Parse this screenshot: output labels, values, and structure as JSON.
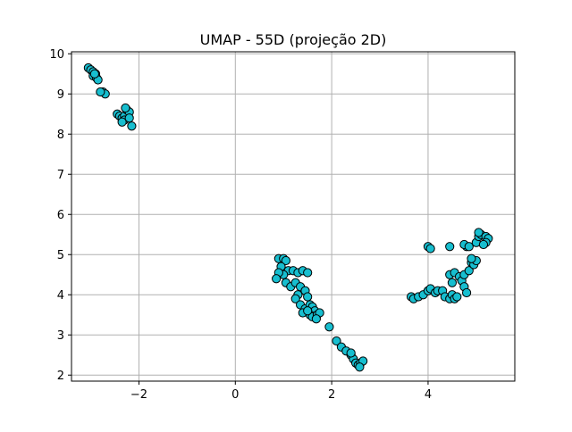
{
  "chart_data": {
    "type": "scatter",
    "title": "UMAP - 55D (projeção 2D)",
    "xlabel": "",
    "ylabel": "",
    "xlim": [
      -3.4,
      5.8
    ],
    "ylim": [
      1.85,
      10.05
    ],
    "xticks": [
      -2,
      0,
      2,
      4
    ],
    "xtick_labels": [
      "−2",
      "0",
      "2",
      "4"
    ],
    "yticks": [
      2,
      3,
      4,
      5,
      6,
      7,
      8,
      9,
      10
    ],
    "ytick_labels": [
      "2",
      "3",
      "4",
      "5",
      "6",
      "7",
      "8",
      "9",
      "10"
    ],
    "grid": true,
    "marker_fill": "#17becf",
    "marker_edge": "#000000",
    "points": [
      [
        -3.05,
        9.65
      ],
      [
        -3.0,
        9.6
      ],
      [
        -2.95,
        9.55
      ],
      [
        -2.9,
        9.5
      ],
      [
        -2.95,
        9.45
      ],
      [
        -2.88,
        9.4
      ],
      [
        -2.85,
        9.35
      ],
      [
        -2.92,
        9.5
      ],
      [
        -2.75,
        9.05
      ],
      [
        -2.7,
        9.0
      ],
      [
        -2.8,
        9.05
      ],
      [
        -2.45,
        8.5
      ],
      [
        -2.4,
        8.45
      ],
      [
        -2.35,
        8.4
      ],
      [
        -2.3,
        8.45
      ],
      [
        -2.25,
        8.6
      ],
      [
        -2.2,
        8.55
      ],
      [
        -2.3,
        8.35
      ],
      [
        -2.15,
        8.2
      ],
      [
        -2.2,
        8.4
      ],
      [
        -2.35,
        8.3
      ],
      [
        -2.28,
        8.65
      ],
      [
        0.9,
        4.9
      ],
      [
        1.0,
        4.9
      ],
      [
        1.05,
        4.85
      ],
      [
        0.95,
        4.7
      ],
      [
        1.1,
        4.6
      ],
      [
        1.0,
        4.5
      ],
      [
        0.9,
        4.55
      ],
      [
        0.85,
        4.4
      ],
      [
        1.2,
        4.6
      ],
      [
        1.3,
        4.55
      ],
      [
        1.4,
        4.6
      ],
      [
        1.5,
        4.55
      ],
      [
        1.05,
        4.3
      ],
      [
        1.15,
        4.2
      ],
      [
        1.25,
        4.3
      ],
      [
        1.35,
        4.2
      ],
      [
        1.45,
        4.1
      ],
      [
        1.3,
        4.0
      ],
      [
        1.5,
        3.95
      ],
      [
        1.25,
        3.9
      ],
      [
        1.35,
        3.75
      ],
      [
        1.45,
        3.65
      ],
      [
        1.55,
        3.75
      ],
      [
        1.6,
        3.7
      ],
      [
        1.65,
        3.6
      ],
      [
        1.55,
        3.5
      ],
      [
        1.6,
        3.45
      ],
      [
        1.7,
        3.5
      ],
      [
        1.75,
        3.55
      ],
      [
        1.68,
        3.4
      ],
      [
        1.4,
        3.55
      ],
      [
        1.5,
        3.6
      ],
      [
        1.95,
        3.2
      ],
      [
        2.1,
        2.85
      ],
      [
        2.2,
        2.7
      ],
      [
        2.3,
        2.6
      ],
      [
        2.4,
        2.5
      ],
      [
        2.45,
        2.4
      ],
      [
        2.5,
        2.3
      ],
      [
        2.55,
        2.25
      ],
      [
        2.6,
        2.3
      ],
      [
        2.65,
        2.35
      ],
      [
        2.58,
        2.2
      ],
      [
        2.4,
        2.55
      ],
      [
        3.65,
        3.95
      ],
      [
        3.7,
        3.9
      ],
      [
        3.8,
        3.95
      ],
      [
        3.9,
        4.0
      ],
      [
        4.0,
        4.1
      ],
      [
        4.05,
        4.15
      ],
      [
        4.15,
        4.05
      ],
      [
        4.2,
        4.1
      ],
      [
        4.3,
        4.1
      ],
      [
        4.35,
        3.95
      ],
      [
        4.45,
        3.9
      ],
      [
        4.5,
        4.0
      ],
      [
        4.55,
        3.9
      ],
      [
        4.6,
        3.95
      ],
      [
        4.5,
        4.3
      ],
      [
        4.45,
        4.5
      ],
      [
        4.55,
        4.55
      ],
      [
        4.65,
        4.45
      ],
      [
        4.7,
        4.35
      ],
      [
        4.75,
        4.5
      ],
      [
        4.75,
        4.2
      ],
      [
        4.8,
        4.05
      ],
      [
        4.85,
        4.6
      ],
      [
        4.9,
        4.8
      ],
      [
        4.95,
        4.75
      ],
      [
        5.0,
        4.85
      ],
      [
        4.9,
        4.9
      ],
      [
        4.8,
        5.2
      ],
      [
        4.75,
        5.25
      ],
      [
        4.85,
        5.2
      ],
      [
        5.0,
        5.3
      ],
      [
        5.05,
        5.45
      ],
      [
        5.1,
        5.5
      ],
      [
        5.05,
        5.55
      ],
      [
        5.2,
        5.45
      ],
      [
        5.25,
        5.4
      ],
      [
        5.2,
        5.3
      ],
      [
        5.15,
        5.25
      ],
      [
        4.0,
        5.2
      ],
      [
        4.05,
        5.15
      ],
      [
        4.45,
        5.2
      ]
    ]
  }
}
